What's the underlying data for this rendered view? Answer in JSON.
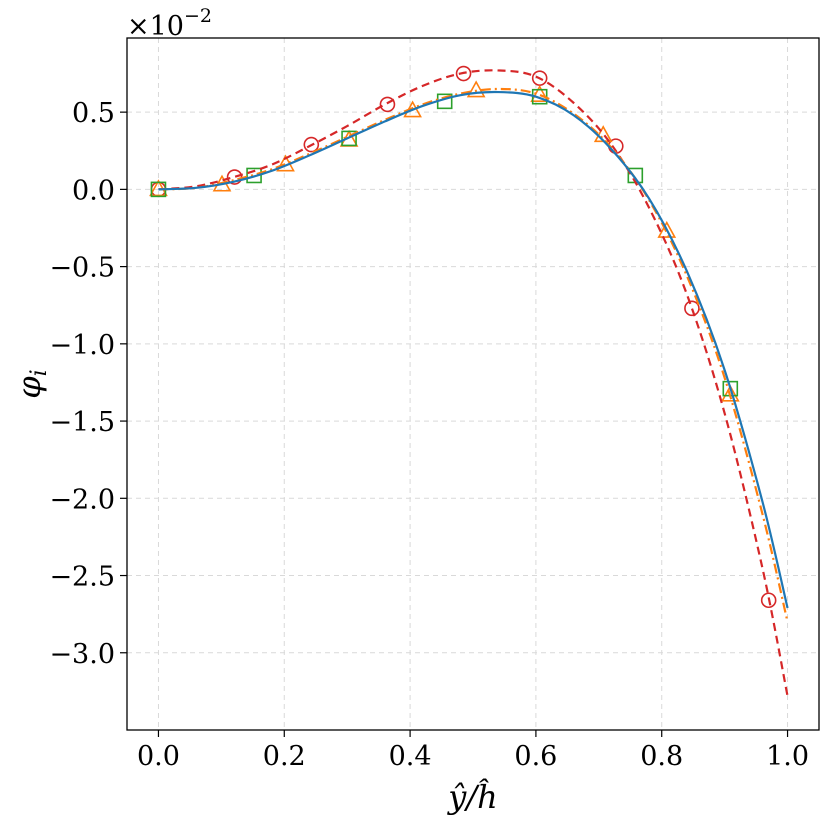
{
  "chart_data": {
    "type": "line",
    "xlabel": "ŷ/ĥ",
    "ylabel": "φ_i",
    "ylabel_main": "φ",
    "ylabel_sub": "i",
    "exponent_label": "×10",
    "exponent_power": "−2",
    "xlim": [
      -0.05,
      1.05
    ],
    "ylim": [
      -3.5,
      0.98
    ],
    "grid": true,
    "x_ticks": [
      0.0,
      0.2,
      0.4,
      0.6,
      0.8,
      1.0
    ],
    "x_tick_labels": [
      "0.0",
      "0.2",
      "0.4",
      "0.6",
      "0.8",
      "1.0"
    ],
    "y_ticks": [
      0.5,
      0.0,
      -0.5,
      -1.0,
      -1.5,
      -2.0,
      -2.5,
      -3.0
    ],
    "y_tick_labels": [
      "0.5",
      "0.0",
      "−0.5",
      "−1.0",
      "−1.5",
      "−2.0",
      "−2.5",
      "−3.0"
    ],
    "series": [
      {
        "color": "#d62728",
        "linestyle": "dashed",
        "marker": "circle",
        "x": [
          0.0,
          0.06,
          0.12,
          0.18,
          0.24,
          0.3,
          0.36,
          0.42,
          0.48,
          0.54,
          0.6,
          0.66,
          0.72,
          0.78,
          0.84,
          0.9,
          0.96,
          1.0
        ],
        "y": [
          0.0,
          0.02,
          0.08,
          0.16,
          0.28,
          0.41,
          0.55,
          0.67,
          0.75,
          0.77,
          0.73,
          0.56,
          0.29,
          -0.12,
          -0.68,
          -1.45,
          -2.45,
          -3.28
        ],
        "markers_x": [
          0.0,
          0.121,
          0.243,
          0.364,
          0.485,
          0.606,
          0.727,
          0.848,
          0.97
        ],
        "markers_y": [
          0.0,
          0.08,
          0.29,
          0.55,
          0.75,
          0.72,
          0.28,
          -0.77,
          -2.66
        ]
      },
      {
        "color": "#ff7f0e",
        "linestyle": "dashdot",
        "marker": "triangle",
        "x": [
          0.0,
          0.06,
          0.12,
          0.18,
          0.24,
          0.3,
          0.36,
          0.42,
          0.48,
          0.54,
          0.6,
          0.66,
          0.72,
          0.78,
          0.84,
          0.9,
          0.96,
          1.0
        ],
        "y": [
          0.0,
          0.01,
          0.06,
          0.13,
          0.23,
          0.34,
          0.45,
          0.55,
          0.62,
          0.65,
          0.62,
          0.49,
          0.27,
          -0.07,
          -0.56,
          -1.22,
          -2.1,
          -2.8
        ],
        "markers_x": [
          0.0,
          0.101,
          0.202,
          0.303,
          0.404,
          0.505,
          0.606,
          0.707,
          0.808,
          0.909
        ],
        "markers_y": [
          0.0,
          0.03,
          0.16,
          0.32,
          0.51,
          0.64,
          0.61,
          0.35,
          -0.27,
          -1.33
        ]
      },
      {
        "color": "#2ca02c",
        "linestyle": "none",
        "marker": "square",
        "x": [],
        "y": [],
        "markers_x": [
          0.0,
          0.152,
          0.303,
          0.455,
          0.606,
          0.758,
          0.909
        ],
        "markers_y": [
          0.0,
          0.09,
          0.33,
          0.57,
          0.6,
          0.09,
          -1.29
        ]
      },
      {
        "color": "#1f77b4",
        "linestyle": "solid",
        "marker": "none",
        "x": [
          0.0,
          0.06,
          0.12,
          0.18,
          0.24,
          0.3,
          0.36,
          0.42,
          0.48,
          0.54,
          0.6,
          0.66,
          0.72,
          0.78,
          0.84,
          0.9,
          0.96,
          1.0
        ],
        "y": [
          0.0,
          0.01,
          0.05,
          0.12,
          0.22,
          0.33,
          0.44,
          0.54,
          0.61,
          0.63,
          0.6,
          0.48,
          0.26,
          -0.06,
          -0.53,
          -1.17,
          -2.02,
          -2.71
        ],
        "markers_x": [],
        "markers_y": []
      }
    ]
  }
}
